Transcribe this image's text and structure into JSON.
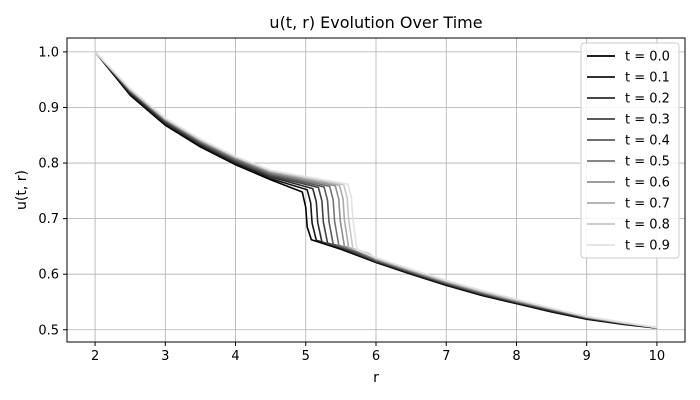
{
  "chart_data": {
    "type": "line",
    "title": "u(t, r) Evolution Over Time",
    "xlabel": "r",
    "ylabel": "u(t, r)",
    "xlim": [
      1.6,
      10.4
    ],
    "ylim": [
      0.478,
      1.025
    ],
    "xticks": [
      2,
      3,
      4,
      5,
      6,
      7,
      8,
      9,
      10
    ],
    "xtick_labels": [
      "2",
      "3",
      "4",
      "5",
      "6",
      "7",
      "8",
      "9",
      "10"
    ],
    "yticks": [
      0.5,
      0.6,
      0.7,
      0.8,
      0.9,
      1.0
    ],
    "ytick_labels": [
      "0.5",
      "0.6",
      "0.7",
      "0.8",
      "0.9",
      "1.0"
    ],
    "grid": true,
    "legend_position": "top-right",
    "series": [
      {
        "name": "t = 0.0",
        "color": "#000000",
        "points": [
          [
            2,
            1.0
          ],
          [
            2.5,
            0.922
          ],
          [
            3,
            0.868
          ],
          [
            3.5,
            0.829
          ],
          [
            4,
            0.797
          ],
          [
            4.5,
            0.77
          ],
          [
            4.95,
            0.748
          ],
          [
            5.0,
            0.72
          ],
          [
            5.02,
            0.685
          ],
          [
            5.08,
            0.662
          ],
          [
            5.5,
            0.645
          ],
          [
            6,
            0.621
          ],
          [
            6.5,
            0.6
          ],
          [
            7,
            0.58
          ],
          [
            7.5,
            0.562
          ],
          [
            8,
            0.547
          ],
          [
            8.5,
            0.532
          ],
          [
            9,
            0.519
          ],
          [
            9.5,
            0.51
          ],
          [
            10,
            0.503
          ]
        ]
      },
      {
        "name": "t = 0.1",
        "color": "#151515",
        "points": [
          [
            2,
            1.0
          ],
          [
            2.5,
            0.924
          ],
          [
            3,
            0.87
          ],
          [
            3.5,
            0.831
          ],
          [
            4,
            0.799
          ],
          [
            4.5,
            0.772
          ],
          [
            5.02,
            0.752
          ],
          [
            5.07,
            0.728
          ],
          [
            5.09,
            0.692
          ],
          [
            5.15,
            0.661
          ],
          [
            5.5,
            0.647
          ],
          [
            6,
            0.622
          ],
          [
            6.5,
            0.601
          ],
          [
            7,
            0.581
          ],
          [
            7.5,
            0.563
          ],
          [
            8,
            0.548
          ],
          [
            8.5,
            0.533
          ],
          [
            9,
            0.52
          ],
          [
            9.5,
            0.511
          ],
          [
            10,
            0.504
          ]
        ]
      },
      {
        "name": "t = 0.2",
        "color": "#2d2d2d",
        "points": [
          [
            2,
            1.0
          ],
          [
            2.5,
            0.926
          ],
          [
            3,
            0.872
          ],
          [
            3.5,
            0.833
          ],
          [
            4,
            0.801
          ],
          [
            4.5,
            0.775
          ],
          [
            5.1,
            0.754
          ],
          [
            5.15,
            0.73
          ],
          [
            5.17,
            0.693
          ],
          [
            5.23,
            0.658
          ],
          [
            5.5,
            0.648
          ],
          [
            6,
            0.623
          ],
          [
            6.5,
            0.602
          ],
          [
            7,
            0.582
          ],
          [
            7.5,
            0.564
          ],
          [
            8,
            0.549
          ],
          [
            8.5,
            0.534
          ],
          [
            9,
            0.521
          ],
          [
            9.5,
            0.511
          ],
          [
            10,
            0.504
          ]
        ]
      },
      {
        "name": "t = 0.3",
        "color": "#434343",
        "points": [
          [
            2,
            1.0
          ],
          [
            2.5,
            0.928
          ],
          [
            3,
            0.874
          ],
          [
            3.5,
            0.835
          ],
          [
            4,
            0.803
          ],
          [
            4.5,
            0.777
          ],
          [
            5.18,
            0.756
          ],
          [
            5.23,
            0.732
          ],
          [
            5.25,
            0.694
          ],
          [
            5.31,
            0.656
          ],
          [
            5.5,
            0.649
          ],
          [
            6,
            0.624
          ],
          [
            6.5,
            0.603
          ],
          [
            7,
            0.583
          ],
          [
            7.5,
            0.565
          ],
          [
            8,
            0.55
          ],
          [
            8.5,
            0.535
          ],
          [
            9,
            0.521
          ],
          [
            9.5,
            0.512
          ],
          [
            10,
            0.504
          ]
        ]
      },
      {
        "name": "t = 0.4",
        "color": "#5a5a5a",
        "points": [
          [
            2,
            1.0
          ],
          [
            2.5,
            0.929
          ],
          [
            3,
            0.876
          ],
          [
            3.5,
            0.837
          ],
          [
            4,
            0.805
          ],
          [
            4.5,
            0.779
          ],
          [
            5.26,
            0.757
          ],
          [
            5.31,
            0.733
          ],
          [
            5.33,
            0.695
          ],
          [
            5.39,
            0.654
          ],
          [
            5.6,
            0.646
          ],
          [
            6,
            0.625
          ],
          [
            6.5,
            0.604
          ],
          [
            7,
            0.584
          ],
          [
            7.5,
            0.566
          ],
          [
            8,
            0.55
          ],
          [
            8.5,
            0.536
          ],
          [
            9,
            0.522
          ],
          [
            9.5,
            0.512
          ],
          [
            10,
            0.504
          ]
        ]
      },
      {
        "name": "t = 0.5",
        "color": "#747474",
        "points": [
          [
            2,
            1.0
          ],
          [
            2.5,
            0.93
          ],
          [
            3,
            0.877
          ],
          [
            3.5,
            0.838
          ],
          [
            4,
            0.807
          ],
          [
            4.5,
            0.781
          ],
          [
            5.34,
            0.758
          ],
          [
            5.39,
            0.734
          ],
          [
            5.41,
            0.696
          ],
          [
            5.47,
            0.652
          ],
          [
            5.7,
            0.643
          ],
          [
            6,
            0.626
          ],
          [
            6.5,
            0.605
          ],
          [
            7,
            0.585
          ],
          [
            7.5,
            0.567
          ],
          [
            8,
            0.551
          ],
          [
            8.5,
            0.537
          ],
          [
            9,
            0.522
          ],
          [
            9.5,
            0.512
          ],
          [
            10,
            0.504
          ]
        ]
      },
      {
        "name": "t = 0.6",
        "color": "#8f8f8f",
        "points": [
          [
            2,
            1.0
          ],
          [
            2.5,
            0.931
          ],
          [
            3,
            0.878
          ],
          [
            3.5,
            0.84
          ],
          [
            4,
            0.809
          ],
          [
            4.5,
            0.783
          ],
          [
            5.42,
            0.759
          ],
          [
            5.47,
            0.735
          ],
          [
            5.49,
            0.697
          ],
          [
            5.55,
            0.65
          ],
          [
            5.8,
            0.641
          ],
          [
            6,
            0.627
          ],
          [
            6.5,
            0.606
          ],
          [
            7,
            0.586
          ],
          [
            7.5,
            0.568
          ],
          [
            8,
            0.552
          ],
          [
            8.5,
            0.537
          ],
          [
            9,
            0.523
          ],
          [
            9.5,
            0.513
          ],
          [
            10,
            0.504
          ]
        ]
      },
      {
        "name": "t = 0.7",
        "color": "#ababab",
        "points": [
          [
            2,
            1.0
          ],
          [
            2.5,
            0.932
          ],
          [
            3,
            0.879
          ],
          [
            3.5,
            0.841
          ],
          [
            4,
            0.81
          ],
          [
            4.5,
            0.785
          ],
          [
            5.48,
            0.76
          ],
          [
            5.53,
            0.736
          ],
          [
            5.55,
            0.698
          ],
          [
            5.61,
            0.648
          ],
          [
            5.9,
            0.637
          ],
          [
            6,
            0.628
          ],
          [
            6.5,
            0.607
          ],
          [
            7,
            0.587
          ],
          [
            7.5,
            0.569
          ],
          [
            8,
            0.553
          ],
          [
            8.5,
            0.538
          ],
          [
            9,
            0.523
          ],
          [
            9.5,
            0.513
          ],
          [
            10,
            0.504
          ]
        ]
      },
      {
        "name": "t = 0.8",
        "color": "#c6c6c6",
        "points": [
          [
            2,
            1.0
          ],
          [
            2.5,
            0.933
          ],
          [
            3,
            0.88
          ],
          [
            3.5,
            0.842
          ],
          [
            4,
            0.811
          ],
          [
            4.5,
            0.786
          ],
          [
            5.54,
            0.761
          ],
          [
            5.59,
            0.737
          ],
          [
            5.61,
            0.699
          ],
          [
            5.67,
            0.646
          ],
          [
            6,
            0.629
          ],
          [
            6.5,
            0.608
          ],
          [
            7,
            0.588
          ],
          [
            7.5,
            0.57
          ],
          [
            8,
            0.554
          ],
          [
            8.5,
            0.538
          ],
          [
            9,
            0.524
          ],
          [
            9.5,
            0.513
          ],
          [
            10,
            0.504
          ]
        ]
      },
      {
        "name": "t = 0.9",
        "color": "#e2e2e2",
        "points": [
          [
            2,
            1.0
          ],
          [
            2.5,
            0.934
          ],
          [
            3,
            0.881
          ],
          [
            3.5,
            0.843
          ],
          [
            4,
            0.812
          ],
          [
            4.5,
            0.787
          ],
          [
            5.6,
            0.762
          ],
          [
            5.65,
            0.738
          ],
          [
            5.67,
            0.7
          ],
          [
            5.73,
            0.644
          ],
          [
            6,
            0.63
          ],
          [
            6.5,
            0.609
          ],
          [
            7,
            0.589
          ],
          [
            7.5,
            0.571
          ],
          [
            8,
            0.555
          ],
          [
            8.5,
            0.539
          ],
          [
            9,
            0.524
          ],
          [
            9.5,
            0.514
          ],
          [
            10,
            0.504
          ]
        ]
      }
    ]
  }
}
